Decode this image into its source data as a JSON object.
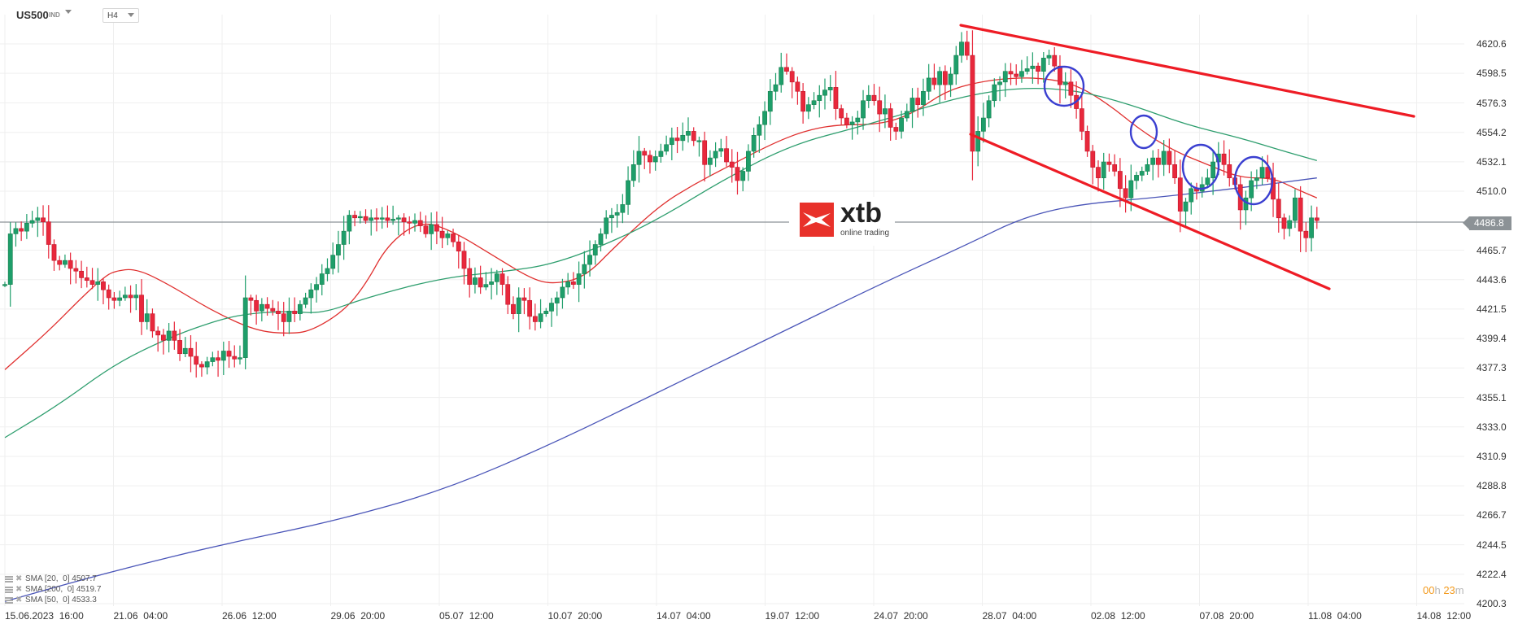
{
  "toolbar": {
    "symbol": "US500",
    "symbol_type": "IND",
    "timeframe": "H4"
  },
  "logo": {
    "brand": "xtb",
    "tagline": "online trading",
    "color": "#e8312a"
  },
  "current_price": {
    "value": "4486.8",
    "price": 4486.8,
    "color": "#8c9296"
  },
  "countdown": {
    "hours": "00",
    "hours_unit": "h",
    "minutes": "23",
    "minutes_unit": "m"
  },
  "legend": [
    {
      "label": "SMA [20,  0] 4507.7"
    },
    {
      "label": "SMA [200,  0] 4519.7"
    },
    {
      "label": "SMA [50,  0] 4533.3"
    }
  ],
  "colors": {
    "bull": "#1e9e6a",
    "bear": "#e8283c",
    "sma20": "#e0302f",
    "sma50": "#2e9e6e",
    "sma200": "#4a55b8",
    "channel": "#ee1c25",
    "circles": "#3a3fd0",
    "grid": "#efefef"
  },
  "chart_data": {
    "type": "candlestick",
    "title": "US500 H4",
    "xlabel": "",
    "ylabel": "",
    "ylim": [
      4200.3,
      4620.6
    ],
    "grid": true,
    "y_ticks": [
      "4620.6",
      "4598.5",
      "4576.3",
      "4554.2",
      "4532.1",
      "4510.0",
      "4465.7",
      "4443.6",
      "4421.5",
      "4399.4",
      "4377.3",
      "4355.1",
      "4333.0",
      "4310.9",
      "4288.8",
      "4266.7",
      "4244.5",
      "4222.4",
      "4200.3"
    ],
    "x_ticks": [
      "15.06.2023  16:00",
      "21.06  04:00",
      "26.06  12:00",
      "29.06  20:00",
      "05.07  12:00",
      "10.07  20:00",
      "14.07  04:00",
      "19.07  12:00",
      "24.07  20:00",
      "28.07  04:00",
      "02.08  12:00",
      "07.08  20:00",
      "11.08  04:00",
      "14.08  12:00"
    ],
    "first_open": 4440,
    "closes": [
      4440,
      4478,
      4482,
      4480,
      4486,
      4488,
      4490,
      4487,
      4470,
      4458,
      4455,
      4458,
      4452,
      4450,
      4445,
      4443,
      4440,
      4442,
      4436,
      4430,
      4428,
      4430,
      4432,
      4430,
      4432,
      4412,
      4418,
      4405,
      4402,
      4398,
      4405,
      4398,
      4388,
      4392,
      4386,
      4380,
      4378,
      4382,
      4385,
      4383,
      4390,
      4386,
      4384,
      4385,
      4430,
      4428,
      4420,
      4425,
      4422,
      4420,
      4418,
      4412,
      4420,
      4418,
      4425,
      4430,
      4436,
      4440,
      4448,
      4452,
      4462,
      4470,
      4480,
      4492,
      4490,
      4491,
      4488,
      4490,
      4489,
      4490,
      4488,
      4489,
      4490,
      4487,
      4486,
      4488,
      4484,
      4478,
      4485,
      4480,
      4475,
      4478,
      4472,
      4465,
      4452,
      4440,
      4445,
      4438,
      4440,
      4442,
      4448,
      4440,
      4425,
      4418,
      4430,
      4428,
      4416,
      4412,
      4418,
      4420,
      4426,
      4430,
      4438,
      4442,
      4440,
      4448,
      4455,
      4462,
      4470,
      4478,
      4490,
      4492,
      4494,
      4500,
      4518,
      4530,
      4540,
      4537,
      4532,
      4536,
      4540,
      4545,
      4550,
      4548,
      4552,
      4555,
      4548,
      4548,
      4530,
      4535,
      4540,
      4542,
      4532,
      4528,
      4518,
      4525,
      4540,
      4552,
      4560,
      4570,
      4585,
      4590,
      4603,
      4600,
      4592,
      4585,
      4570,
      4575,
      4578,
      4582,
      4586,
      4588,
      4572,
      4565,
      4560,
      4562,
      4565,
      4578,
      4582,
      4578,
      4568,
      4572,
      4558,
      4555,
      4565,
      4570,
      4580,
      4575,
      4585,
      4595,
      4590,
      4600,
      4590,
      4598,
      4612,
      4622,
      4612,
      4540,
      4555,
      4565,
      4578,
      4590,
      4592,
      4600,
      4598,
      4596,
      4600,
      4602,
      4604,
      4600,
      4610,
      4612,
      4604,
      4590,
      4592,
      4582,
      4572,
      4555,
      4540,
      4528,
      4520,
      4532,
      4530,
      4525,
      4512,
      4505,
      4518,
      4522,
      4525,
      4530,
      4535,
      4530,
      4540,
      4530,
      4520,
      4495,
      4502,
      4512,
      4510,
      4515,
      4520,
      4532,
      4538,
      4530,
      4520,
      4515,
      4496,
      4505,
      4518,
      4520,
      4528,
      4520,
      4504,
      4490,
      4482,
      4488,
      4505,
      4480,
      4475,
      4490,
      4488
    ],
    "series": [
      {
        "name": "SMA [20, 0]",
        "last": 4507.7,
        "points": [
          [
            0,
            4376
          ],
          [
            8,
            4405
          ],
          [
            14,
            4430
          ],
          [
            18,
            4445
          ],
          [
            20,
            4450
          ],
          [
            24,
            4452
          ],
          [
            30,
            4440
          ],
          [
            38,
            4420
          ],
          [
            46,
            4405
          ],
          [
            52,
            4403
          ],
          [
            56,
            4405
          ],
          [
            62,
            4420
          ],
          [
            66,
            4440
          ],
          [
            70,
            4470
          ],
          [
            76,
            4488
          ],
          [
            82,
            4480
          ],
          [
            90,
            4460
          ],
          [
            96,
            4445
          ],
          [
            100,
            4440
          ],
          [
            106,
            4445
          ],
          [
            112,
            4470
          ],
          [
            120,
            4500
          ],
          [
            126,
            4515
          ],
          [
            132,
            4528
          ],
          [
            140,
            4545
          ],
          [
            146,
            4555
          ],
          [
            152,
            4560
          ],
          [
            160,
            4560
          ],
          [
            166,
            4568
          ],
          [
            172,
            4585
          ],
          [
            178,
            4592
          ],
          [
            184,
            4595
          ],
          [
            190,
            4595
          ],
          [
            196,
            4590
          ],
          [
            202,
            4575
          ],
          [
            208,
            4555
          ],
          [
            214,
            4540
          ],
          [
            220,
            4530
          ],
          [
            226,
            4520
          ],
          [
            232,
            4520
          ],
          [
            236,
            4512
          ],
          [
            240,
            4505
          ]
        ]
      },
      {
        "name": "SMA [50, 0]",
        "last": 4533.3,
        "points": [
          [
            0,
            4325
          ],
          [
            10,
            4350
          ],
          [
            20,
            4380
          ],
          [
            30,
            4400
          ],
          [
            38,
            4412
          ],
          [
            44,
            4418
          ],
          [
            52,
            4420
          ],
          [
            58,
            4418
          ],
          [
            66,
            4430
          ],
          [
            80,
            4445
          ],
          [
            92,
            4450
          ],
          [
            100,
            4455
          ],
          [
            110,
            4470
          ],
          [
            120,
            4490
          ],
          [
            132,
            4520
          ],
          [
            144,
            4545
          ],
          [
            156,
            4558
          ],
          [
            166,
            4570
          ],
          [
            176,
            4582
          ],
          [
            186,
            4588
          ],
          [
            196,
            4586
          ],
          [
            206,
            4575
          ],
          [
            216,
            4560
          ],
          [
            226,
            4550
          ],
          [
            234,
            4540
          ],
          [
            240,
            4533
          ]
        ]
      },
      {
        "name": "SMA [200, 0]",
        "last": 4519.7,
        "points": [
          [
            0,
            4202
          ],
          [
            20,
            4225
          ],
          [
            40,
            4245
          ],
          [
            60,
            4262
          ],
          [
            80,
            4285
          ],
          [
            100,
            4320
          ],
          [
            120,
            4360
          ],
          [
            140,
            4400
          ],
          [
            160,
            4440
          ],
          [
            176,
            4470
          ],
          [
            186,
            4490
          ],
          [
            196,
            4500
          ],
          [
            210,
            4505
          ],
          [
            225,
            4512
          ],
          [
            240,
            4520
          ]
        ]
      }
    ],
    "annotations": {
      "channel_upper": [
        [
          1181,
          31
        ],
        [
          1738,
          143
        ]
      ],
      "channel_lower": [
        [
          1193,
          165
        ],
        [
          1634,
          355
        ]
      ],
      "circles": [
        [
          1308,
          106,
          24,
          24
        ],
        [
          1406,
          162,
          16,
          20
        ],
        [
          1476,
          205,
          22,
          27
        ],
        [
          1541,
          222,
          23,
          29
        ]
      ]
    }
  }
}
